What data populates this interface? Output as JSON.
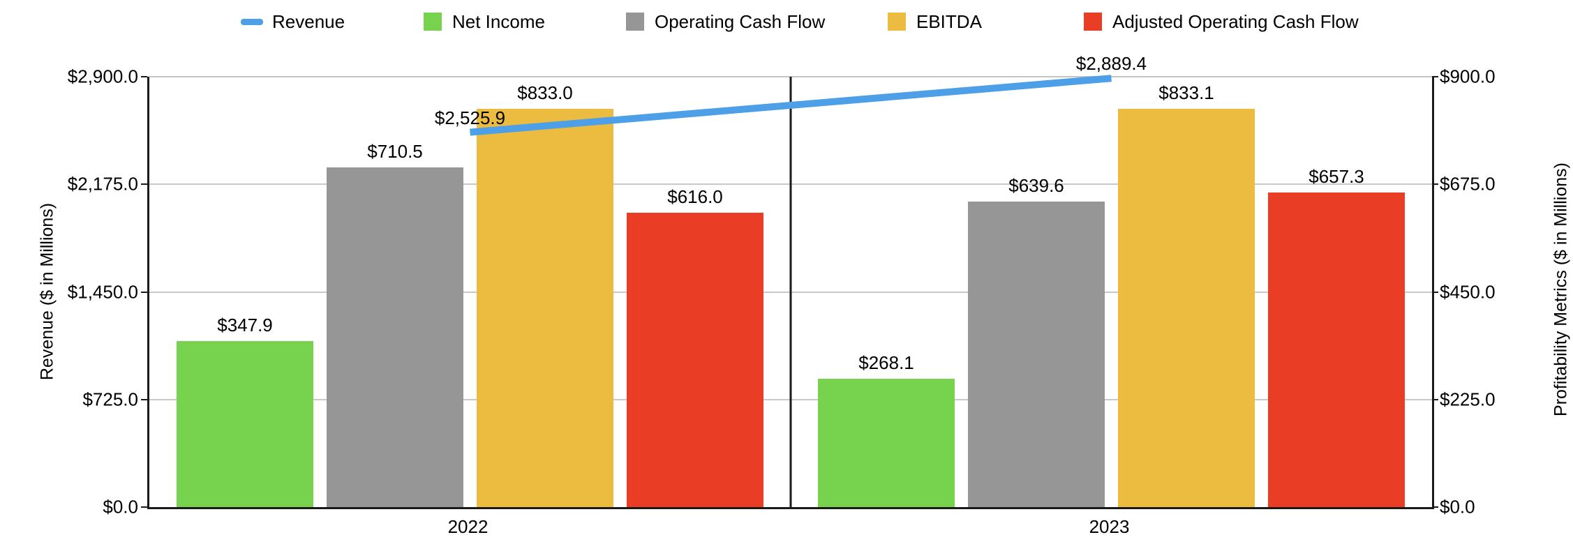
{
  "chart_data": {
    "type": "bar",
    "subtype": "combo-bar-line-dual-axis",
    "title": "",
    "categories": [
      "2022",
      "2023"
    ],
    "series": [
      {
        "name": "Revenue",
        "render": "line",
        "axis": "left",
        "color": "#4d9fe8",
        "values": [
          2525.9,
          2889.4
        ],
        "point_labels": [
          "$2,525.9",
          "$2,889.4"
        ]
      },
      {
        "name": "Net Income",
        "render": "bar",
        "axis": "right",
        "color": "#77d34e",
        "values": [
          347.9,
          268.1
        ],
        "point_labels": [
          "$347.9",
          "$268.1"
        ]
      },
      {
        "name": "Operating Cash Flow",
        "render": "bar",
        "axis": "right",
        "color": "#969696",
        "values": [
          710.5,
          639.6
        ],
        "point_labels": [
          "$710.5",
          "$639.6"
        ]
      },
      {
        "name": "EBITDA",
        "render": "bar",
        "axis": "right",
        "color": "#ebbc40",
        "values": [
          833.0,
          833.1
        ],
        "point_labels": [
          "$833.0",
          "$833.1"
        ]
      },
      {
        "name": "Adjusted Operating Cash Flow",
        "render": "bar",
        "axis": "right",
        "color": "#e93e25",
        "values": [
          616.0,
          657.3
        ],
        "point_labels": [
          "$616.0",
          "$657.3"
        ]
      }
    ],
    "left_axis": {
      "title": "Revenue ($ in Millions)",
      "min": 0,
      "max": 2900,
      "ticks": [
        "$0.0",
        "$725.0",
        "$1,450.0",
        "$2,175.0",
        "$2,900.0"
      ]
    },
    "right_axis": {
      "title": "Profitability Metrics ($ in Millions)",
      "min": 0,
      "max": 900,
      "ticks": [
        "$0.0",
        "$225.0",
        "$450.0",
        "$675.0",
        "$900.0"
      ]
    },
    "legend": {
      "position": "top",
      "entries": [
        "Revenue",
        "Net Income",
        "Operating Cash Flow",
        "EBITDA",
        "Adjusted Operating Cash Flow"
      ]
    },
    "grid": true,
    "colors": {
      "gridline": "#c9c9c9",
      "axis_line": "#1a1a1a",
      "text": "#000000"
    }
  }
}
